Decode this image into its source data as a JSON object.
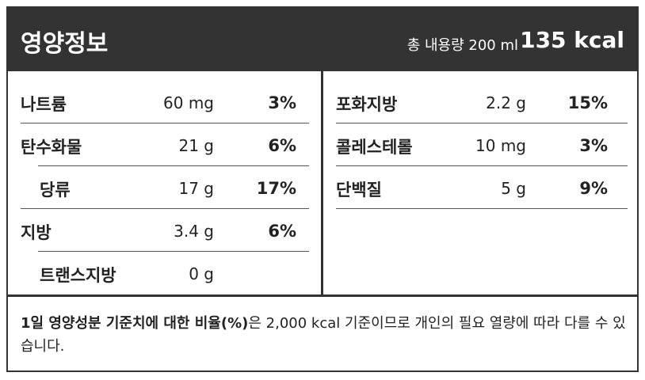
{
  "header": {
    "title": "영양정보",
    "serving": "총 내용량 200 ml",
    "calories": "135 kcal"
  },
  "left_table": {
    "rows": [
      [
        "나트륨",
        "60 mg",
        "3%"
      ],
      [
        "탄수화물",
        "21 g",
        "6%"
      ],
      [
        "당류",
        "17 g",
        "17%"
      ],
      [
        "지방",
        "3.4 g",
        "6%"
      ],
      [
        "트랜스지방",
        "0 g"
      ]
    ]
  },
  "right_table": {
    "rows": [
      [
        "포화지방",
        "2.2 g",
        "15%"
      ],
      [
        "콜레스테롤",
        "10 mg",
        "3%"
      ],
      [
        "단백질",
        "5 g",
        "9%"
      ]
    ]
  },
  "footnote": {
    "bold": "1일 영양성분 기준치에 대한 비율(%)",
    "text": "은 2,000 kcal 기준이므로 개인의 필요 열량에 따라 다를 수 있습니다."
  }
}
